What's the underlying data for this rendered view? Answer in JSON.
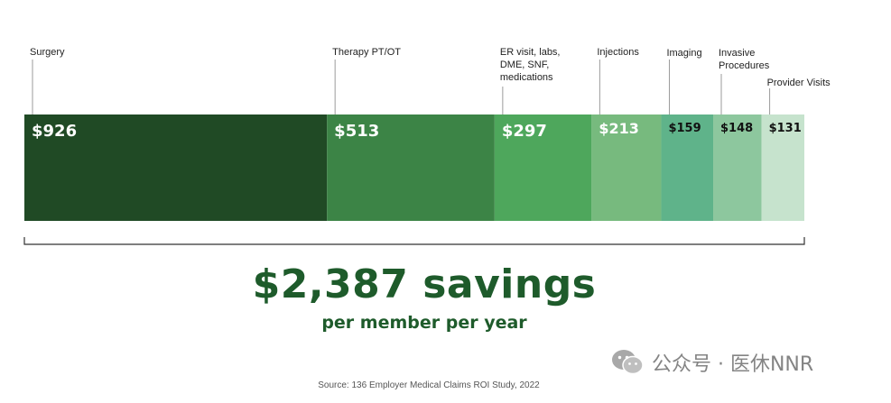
{
  "chart_data": {
    "type": "bar",
    "orientation": "horizontal-stacked",
    "categories": [
      "Surgery",
      "Therapy PT/OT",
      "ER visit, labs,\nDME, SNF,\nmedications",
      "Injections",
      "Imaging",
      "Invasive\nProcedures",
      "Provider Visits"
    ],
    "values": [
      926,
      513,
      297,
      213,
      159,
      148,
      131
    ],
    "value_labels": [
      "$926",
      "$513",
      "$297",
      "$213",
      "$159",
      "$148",
      "$131"
    ],
    "colors": [
      "#204a25",
      "#3c8446",
      "#4ea75c",
      "#77ba7e",
      "#5fb38a",
      "#8dc79e",
      "#c6e3cd"
    ],
    "label_colors": [
      "#ffffff",
      "#ffffff",
      "#ffffff",
      "#ffffff",
      "#111111",
      "#111111",
      "#111111"
    ],
    "grid": false,
    "legend": "none"
  },
  "summary": {
    "total": "$2,387 savings",
    "subtitle": "per member per year"
  },
  "source": "Source: 136 Employer Medical Claims ROI Study, 2022",
  "watermark": {
    "icon": "wechat-icon",
    "text": "公众号 · 医休NNR"
  }
}
